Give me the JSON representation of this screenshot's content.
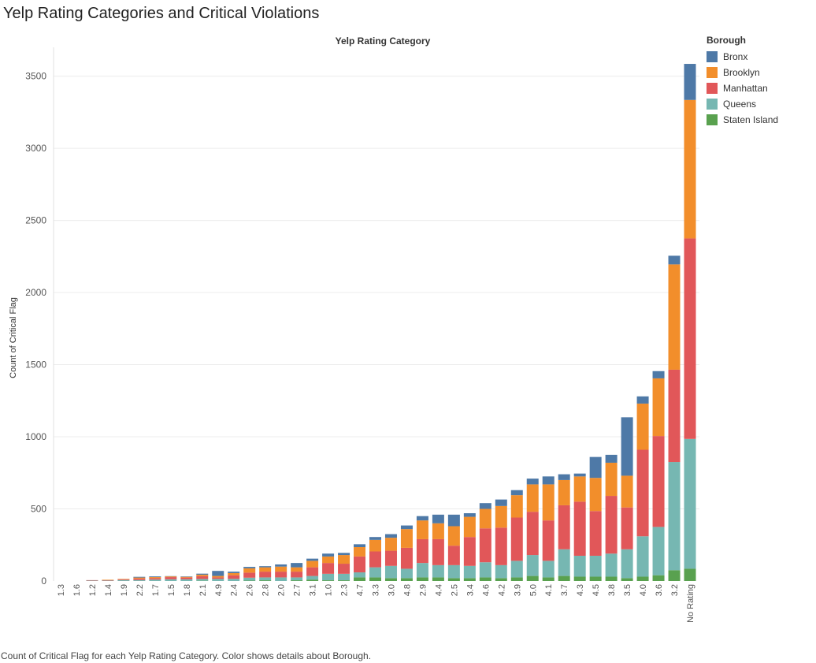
{
  "title": "Yelp Rating Categories and Critical Violations",
  "caption": "Count of Critical Flag for each Yelp Rating Category.  Color shows details about Borough.",
  "legend_title": "Borough",
  "chart_data": {
    "type": "bar",
    "stacked": true,
    "title": "Yelp Rating Category",
    "xlabel": "Yelp Rating Category",
    "ylabel": "Count of Critical Flag",
    "ylim": [
      0,
      3700
    ],
    "yticks": [
      0,
      500,
      1000,
      1500,
      2000,
      2500,
      3000,
      3500
    ],
    "grid": true,
    "legend_position": "right",
    "categories": [
      "1.3",
      "1.6",
      "1.2",
      "1.4",
      "1.9",
      "2.2",
      "1.7",
      "1.5",
      "1.8",
      "2.1",
      "4.9",
      "2.4",
      "2.6",
      "2.8",
      "2.0",
      "2.7",
      "3.1",
      "1.0",
      "2.3",
      "4.7",
      "3.3",
      "3.0",
      "4.8",
      "2.9",
      "4.4",
      "2.5",
      "3.4",
      "4.6",
      "4.2",
      "3.9",
      "5.0",
      "4.1",
      "3.7",
      "4.3",
      "4.5",
      "3.8",
      "3.5",
      "4.0",
      "3.6",
      "3.2",
      "No Rating"
    ],
    "series": [
      {
        "name": "Staten Island",
        "color": "#59a14f",
        "values": [
          0,
          0,
          0,
          0,
          0,
          0,
          0,
          0,
          0,
          2,
          0,
          0,
          3,
          5,
          0,
          5,
          10,
          5,
          5,
          25,
          25,
          20,
          20,
          25,
          25,
          20,
          20,
          25,
          20,
          25,
          35,
          25,
          35,
          30,
          30,
          30,
          20,
          30,
          40,
          75,
          85
        ]
      },
      {
        "name": "Queens",
        "color": "#76b7b2",
        "values": [
          0,
          0,
          3,
          3,
          7,
          7,
          10,
          12,
          12,
          12,
          15,
          15,
          20,
          20,
          25,
          20,
          25,
          45,
          45,
          35,
          70,
          85,
          65,
          100,
          85,
          90,
          85,
          105,
          90,
          115,
          145,
          115,
          185,
          145,
          145,
          160,
          200,
          280,
          335,
          750,
          900
        ]
      },
      {
        "name": "Manhattan",
        "color": "#e15759",
        "values": [
          0,
          0,
          3,
          3,
          5,
          10,
          10,
          15,
          12,
          20,
          10,
          25,
          35,
          40,
          40,
          40,
          60,
          75,
          70,
          110,
          110,
          105,
          145,
          165,
          180,
          135,
          200,
          235,
          260,
          300,
          300,
          280,
          305,
          375,
          310,
          400,
          290,
          600,
          630,
          640,
          1390
        ]
      },
      {
        "name": "Brooklyn",
        "color": "#f28e2b",
        "values": [
          0,
          0,
          0,
          3,
          3,
          7,
          7,
          5,
          5,
          10,
          10,
          15,
          30,
          30,
          35,
          30,
          45,
          45,
          60,
          65,
          80,
          90,
          130,
          130,
          110,
          135,
          140,
          135,
          150,
          155,
          190,
          250,
          175,
          175,
          230,
          230,
          220,
          320,
          400,
          730,
          960
        ]
      },
      {
        "name": "Bronx",
        "color": "#4e79a7",
        "values": [
          0,
          0,
          0,
          0,
          0,
          5,
          5,
          2,
          3,
          7,
          35,
          10,
          10,
          8,
          15,
          30,
          15,
          20,
          15,
          20,
          20,
          25,
          25,
          30,
          60,
          80,
          25,
          40,
          45,
          35,
          40,
          55,
          40,
          20,
          145,
          55,
          405,
          50,
          50,
          60,
          250
        ]
      }
    ]
  }
}
